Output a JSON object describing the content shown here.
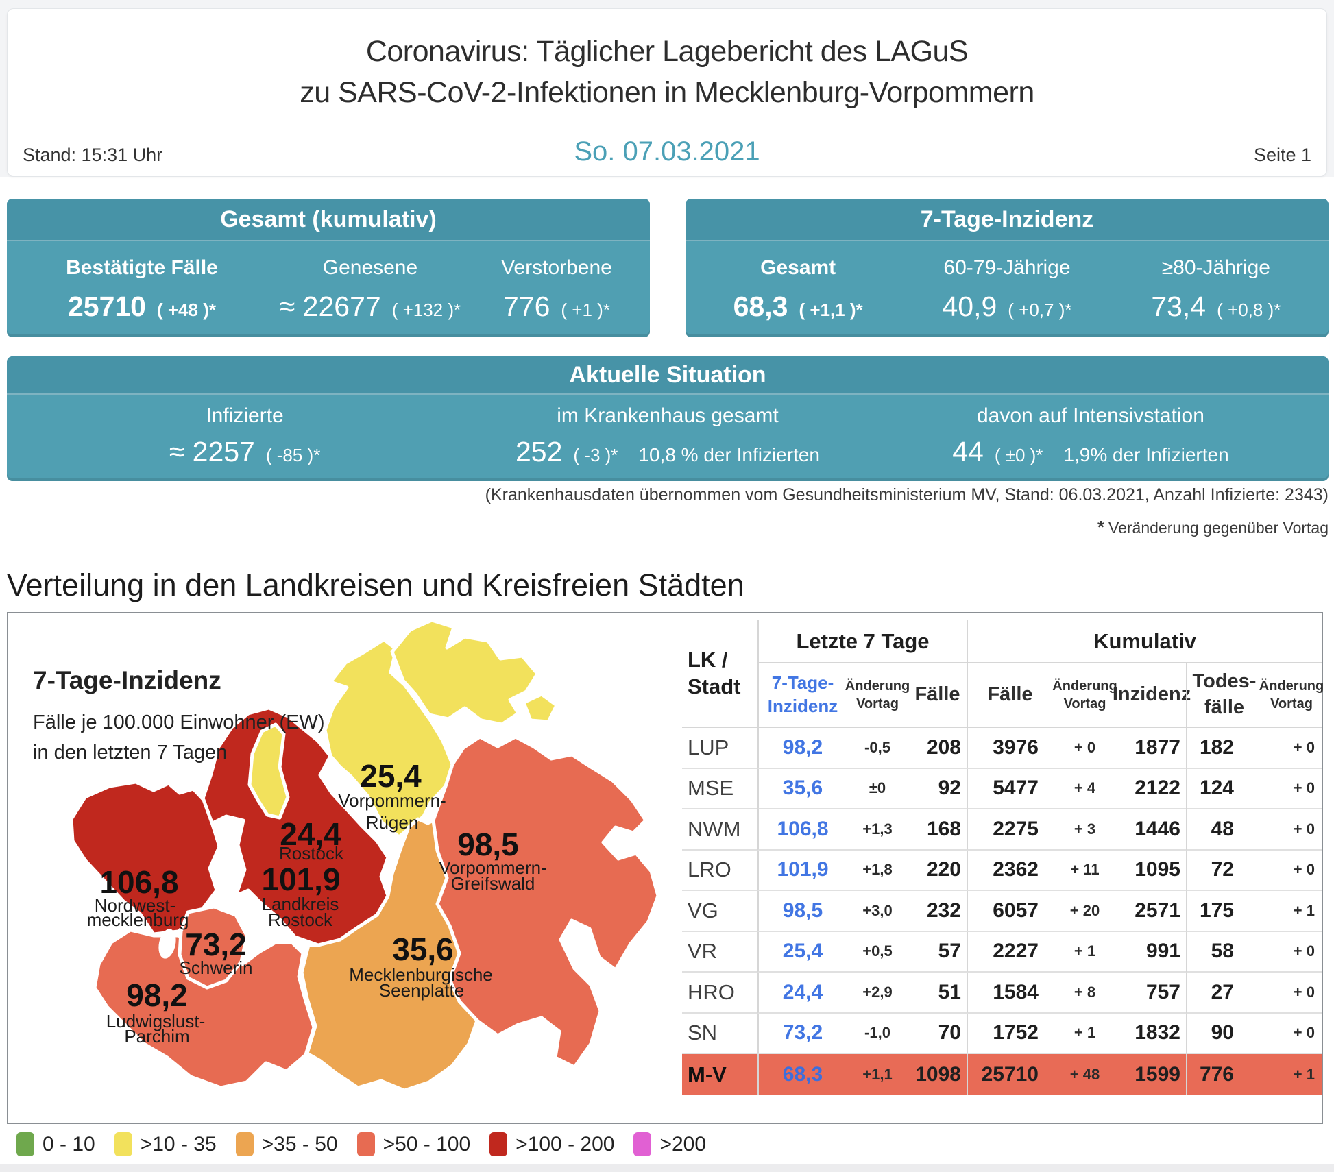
{
  "header": {
    "title_line1": "Coronavirus: Täglicher Lagebericht des LAGuS",
    "title_line2": "zu SARS-CoV-2-Infektionen in Mecklenburg-Vorpommern",
    "stand": "Stand: 15:31 Uhr",
    "date": "So. 07.03.2021",
    "page_label": "Seite 1"
  },
  "panel_gesamt": {
    "title": "Gesamt (kumulativ)",
    "cols": [
      {
        "label": "Bestätigte Fälle",
        "value": "25710",
        "change": "( +48 )*"
      },
      {
        "label": "Genesene",
        "value": "≈ 22677",
        "change": "( +132 )*"
      },
      {
        "label": "Verstorbene",
        "value": "776",
        "change": "( +1 )*"
      }
    ]
  },
  "panel_inzidenz": {
    "title": "7-Tage-Inzidenz",
    "cols": [
      {
        "label": "Gesamt",
        "value": "68,3",
        "change": "( +1,1 )*"
      },
      {
        "label": "60-79-Jährige",
        "value": "40,9",
        "change": "( +0,7 )*"
      },
      {
        "label": "≥80-Jährige",
        "value": "73,4",
        "change": "( +0,8 )*"
      }
    ]
  },
  "panel_aktuell": {
    "title": "Aktuelle Situation",
    "cols": [
      {
        "label": "Infizierte",
        "value": "≈ 2257",
        "change": "( -85 )*"
      },
      {
        "label": "im Krankenhaus gesamt",
        "value": "252",
        "change": "( -3 )*",
        "extra": "10,8 % der Infizierten"
      },
      {
        "label": "davon auf Intensivstation",
        "value": "44",
        "change": "( ±0 )*",
        "extra": "1,9% der Infizierten"
      }
    ]
  },
  "footnote_hospital": "(Krankenhausdaten übernommen vom Gesundheitsministerium MV, Stand: 06.03.2021, Anzahl Infizierte: 2343)",
  "footnote_star": "Veränderung gegenüber Vortag",
  "section_title": "Verteilung in den Landkreisen und Kreisfreien Städten",
  "map": {
    "title": "7-Tage-Inzidenz",
    "subtitle1": "Fälle je 100.000 Einwohner (EW)",
    "subtitle2": "in den letzten 7 Tagen",
    "band_colors": {
      "0-10": "#6FA84D",
      "10-35": "#F2E15C",
      "35-50": "#ECA551",
      "50-100": "#E76B52",
      "100-200": "#C0281E",
      ">200": "#E160D3"
    },
    "regions": [
      {
        "id": "nwm",
        "value": "106,8",
        "name_lines": [
          "Nordwest-",
          "mecklenburg"
        ],
        "band": "100-200"
      },
      {
        "id": "lro",
        "value": "101,9",
        "name_lines": [
          "Landkreis",
          "Rostock"
        ],
        "band": "100-200"
      },
      {
        "id": "hro",
        "value": "24,4",
        "name_lines": [
          "Rostock"
        ],
        "band": "10-35"
      },
      {
        "id": "vr",
        "value": "25,4",
        "name_lines": [
          "Vorpommern-",
          "Rügen"
        ],
        "band": "10-35"
      },
      {
        "id": "vg",
        "value": "98,5",
        "name_lines": [
          "Vorpommern-",
          "Greifswald"
        ],
        "band": "50-100"
      },
      {
        "id": "mse",
        "value": "35,6",
        "name_lines": [
          "Mecklenburgische",
          "Seenplatte"
        ],
        "band": "35-50"
      },
      {
        "id": "sn",
        "value": "73,2",
        "name_lines": [
          "Schwerin"
        ],
        "band": "50-100"
      },
      {
        "id": "lup",
        "value": "98,2",
        "name_lines": [
          "Ludwigslust-",
          "Parchim"
        ],
        "band": "50-100"
      }
    ],
    "legend": [
      {
        "label": "0 - 10",
        "color": "#6FA84D"
      },
      {
        "label": ">10 - 35",
        "color": "#F2E15C"
      },
      {
        "label": ">35 - 50",
        "color": "#ECA551"
      },
      {
        "label": ">50 - 100",
        "color": "#E76B52"
      },
      {
        "label": ">100 - 200",
        "color": "#C0281E"
      },
      {
        "label": ">200",
        "color": "#E160D3"
      }
    ]
  },
  "table": {
    "lk_line1": "LK /",
    "lk_line2": "Stadt",
    "group1": "Letzte 7 Tage",
    "group2": "Kumulativ",
    "sub_headers": [
      {
        "l1": "7-Tage-",
        "l2": "Inzidenz"
      },
      {
        "l1": "Änderung",
        "l2": "Vortag"
      },
      {
        "l1": "Fälle",
        "l2": ""
      },
      {
        "l1": "Fälle",
        "l2": ""
      },
      {
        "l1": "Änderung",
        "l2": "Vortag"
      },
      {
        "l1": "Inzidenz",
        "l2": ""
      },
      {
        "l1": "Todes-",
        "l2": "fälle"
      },
      {
        "l1": "Änderung",
        "l2": "Vortag"
      }
    ],
    "rows": [
      {
        "name": "LUP",
        "inz7": "98,2",
        "chg7": "-0,5",
        "faelle7": "208",
        "kfaelle": "3976",
        "kchg": "+ 0",
        "kinz": "1877",
        "tote": "182",
        "tchg": "+ 0"
      },
      {
        "name": "MSE",
        "inz7": "35,6",
        "chg7": "±0",
        "faelle7": "92",
        "kfaelle": "5477",
        "kchg": "+ 4",
        "kinz": "2122",
        "tote": "124",
        "tchg": "+ 0"
      },
      {
        "name": "NWM",
        "inz7": "106,8",
        "chg7": "+1,3",
        "faelle7": "168",
        "kfaelle": "2275",
        "kchg": "+ 3",
        "kinz": "1446",
        "tote": "48",
        "tchg": "+ 0"
      },
      {
        "name": "LRO",
        "inz7": "101,9",
        "chg7": "+1,8",
        "faelle7": "220",
        "kfaelle": "2362",
        "kchg": "+ 11",
        "kinz": "1095",
        "tote": "72",
        "tchg": "+ 0"
      },
      {
        "name": "VG",
        "inz7": "98,5",
        "chg7": "+3,0",
        "faelle7": "232",
        "kfaelle": "6057",
        "kchg": "+ 20",
        "kinz": "2571",
        "tote": "175",
        "tchg": "+ 1"
      },
      {
        "name": "VR",
        "inz7": "25,4",
        "chg7": "+0,5",
        "faelle7": "57",
        "kfaelle": "2227",
        "kchg": "+ 1",
        "kinz": "991",
        "tote": "58",
        "tchg": "+ 0"
      },
      {
        "name": "HRO",
        "inz7": "24,4",
        "chg7": "+2,9",
        "faelle7": "51",
        "kfaelle": "1584",
        "kchg": "+ 8",
        "kinz": "757",
        "tote": "27",
        "tchg": "+ 0"
      },
      {
        "name": "SN",
        "inz7": "73,2",
        "chg7": "-1,0",
        "faelle7": "70",
        "kfaelle": "1752",
        "kchg": "+ 1",
        "kinz": "1832",
        "tote": "90",
        "tchg": "+ 0"
      }
    ],
    "total": {
      "name": "M-V",
      "inz7": "68,3",
      "chg7": "+1,1",
      "faelle7": "1098",
      "kfaelle": "25710",
      "kchg": "+ 48",
      "kinz": "1599",
      "tote": "776",
      "tchg": "+ 1"
    }
  }
}
